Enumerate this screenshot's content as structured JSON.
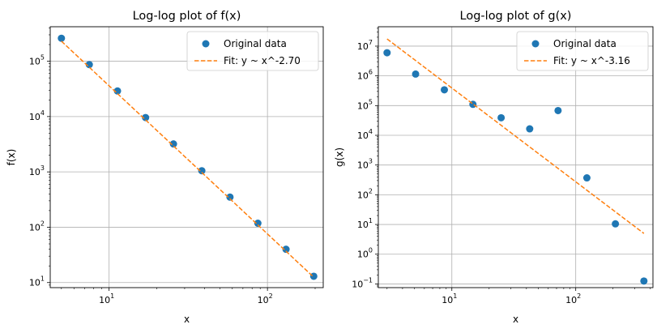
{
  "chart_data": [
    {
      "type": "scatter",
      "title": "Log-log plot of f(x)",
      "xlabel": "x",
      "ylabel": "f(x)",
      "xscale": "log",
      "yscale": "log",
      "xlim": [
        4.25,
        225
      ],
      "ylim": [
        8.1,
        420000
      ],
      "grid": true,
      "legend_position": "top-right",
      "xticks": [
        {
          "value": 10,
          "base": "10",
          "exp": "1"
        },
        {
          "value": 100,
          "base": "10",
          "exp": "2"
        }
      ],
      "yticks": [
        {
          "value": 10,
          "base": "10",
          "exp": "1"
        },
        {
          "value": 100,
          "base": "10",
          "exp": "2"
        },
        {
          "value": 1000,
          "base": "10",
          "exp": "3"
        },
        {
          "value": 10000,
          "base": "10",
          "exp": "4"
        },
        {
          "value": 100000,
          "base": "10",
          "exp": "5"
        }
      ],
      "series": [
        {
          "name": "Original data",
          "kind": "scatter",
          "color": "#1f77b4",
          "points": [
            {
              "x": 5,
              "y": 260000
            },
            {
              "x": 7.5,
              "y": 87000
            },
            {
              "x": 11.3,
              "y": 29000
            },
            {
              "x": 17,
              "y": 9600
            },
            {
              "x": 25.5,
              "y": 3200
            },
            {
              "x": 38.5,
              "y": 1050
            },
            {
              "x": 58,
              "y": 350
            },
            {
              "x": 87,
              "y": 118
            },
            {
              "x": 131,
              "y": 40
            },
            {
              "x": 196,
              "y": 13
            }
          ]
        },
        {
          "name": "Fit: y ~ x^-2.70",
          "kind": "line",
          "style": "dashed",
          "color": "#ff7f0e",
          "points": [
            {
              "x": 5,
              "y": 230000
            },
            {
              "x": 196,
              "y": 12.5
            }
          ]
        }
      ]
    },
    {
      "type": "scatter",
      "title": "Log-log plot of g(x)",
      "xlabel": "x",
      "ylabel": "g(x)",
      "xscale": "log",
      "yscale": "log",
      "xlim": [
        2.55,
        420
      ],
      "ylim": [
        0.075,
        45000000
      ],
      "grid": true,
      "legend_position": "top-right",
      "xticks": [
        {
          "value": 10,
          "base": "10",
          "exp": "1"
        },
        {
          "value": 100,
          "base": "10",
          "exp": "2"
        }
      ],
      "yticks": [
        {
          "value": 0.1,
          "base": "10",
          "exp": "−1"
        },
        {
          "value": 1,
          "base": "10",
          "exp": "0"
        },
        {
          "value": 10,
          "base": "10",
          "exp": "1"
        },
        {
          "value": 100,
          "base": "10",
          "exp": "2"
        },
        {
          "value": 1000,
          "base": "10",
          "exp": "3"
        },
        {
          "value": 10000,
          "base": "10",
          "exp": "4"
        },
        {
          "value": 100000,
          "base": "10",
          "exp": "5"
        },
        {
          "value": 1000000,
          "base": "10",
          "exp": "6"
        },
        {
          "value": 10000000,
          "base": "10",
          "exp": "7"
        }
      ],
      "series": [
        {
          "name": "Original data",
          "kind": "scatter",
          "color": "#1f77b4",
          "points": [
            {
              "x": 3,
              "y": 6000000
            },
            {
              "x": 5.1,
              "y": 1150000
            },
            {
              "x": 8.7,
              "y": 340000
            },
            {
              "x": 14.8,
              "y": 110000
            },
            {
              "x": 25,
              "y": 39000
            },
            {
              "x": 42.5,
              "y": 16500
            },
            {
              "x": 72,
              "y": 68000
            },
            {
              "x": 123,
              "y": 370
            },
            {
              "x": 209,
              "y": 10.5
            },
            {
              "x": 355,
              "y": 0.125
            }
          ]
        },
        {
          "name": "Fit: y ~ x^-3.16",
          "kind": "line",
          "style": "dashed",
          "color": "#ff7f0e",
          "points": [
            {
              "x": 3,
              "y": 17500000
            },
            {
              "x": 355,
              "y": 5
            }
          ]
        }
      ]
    }
  ]
}
